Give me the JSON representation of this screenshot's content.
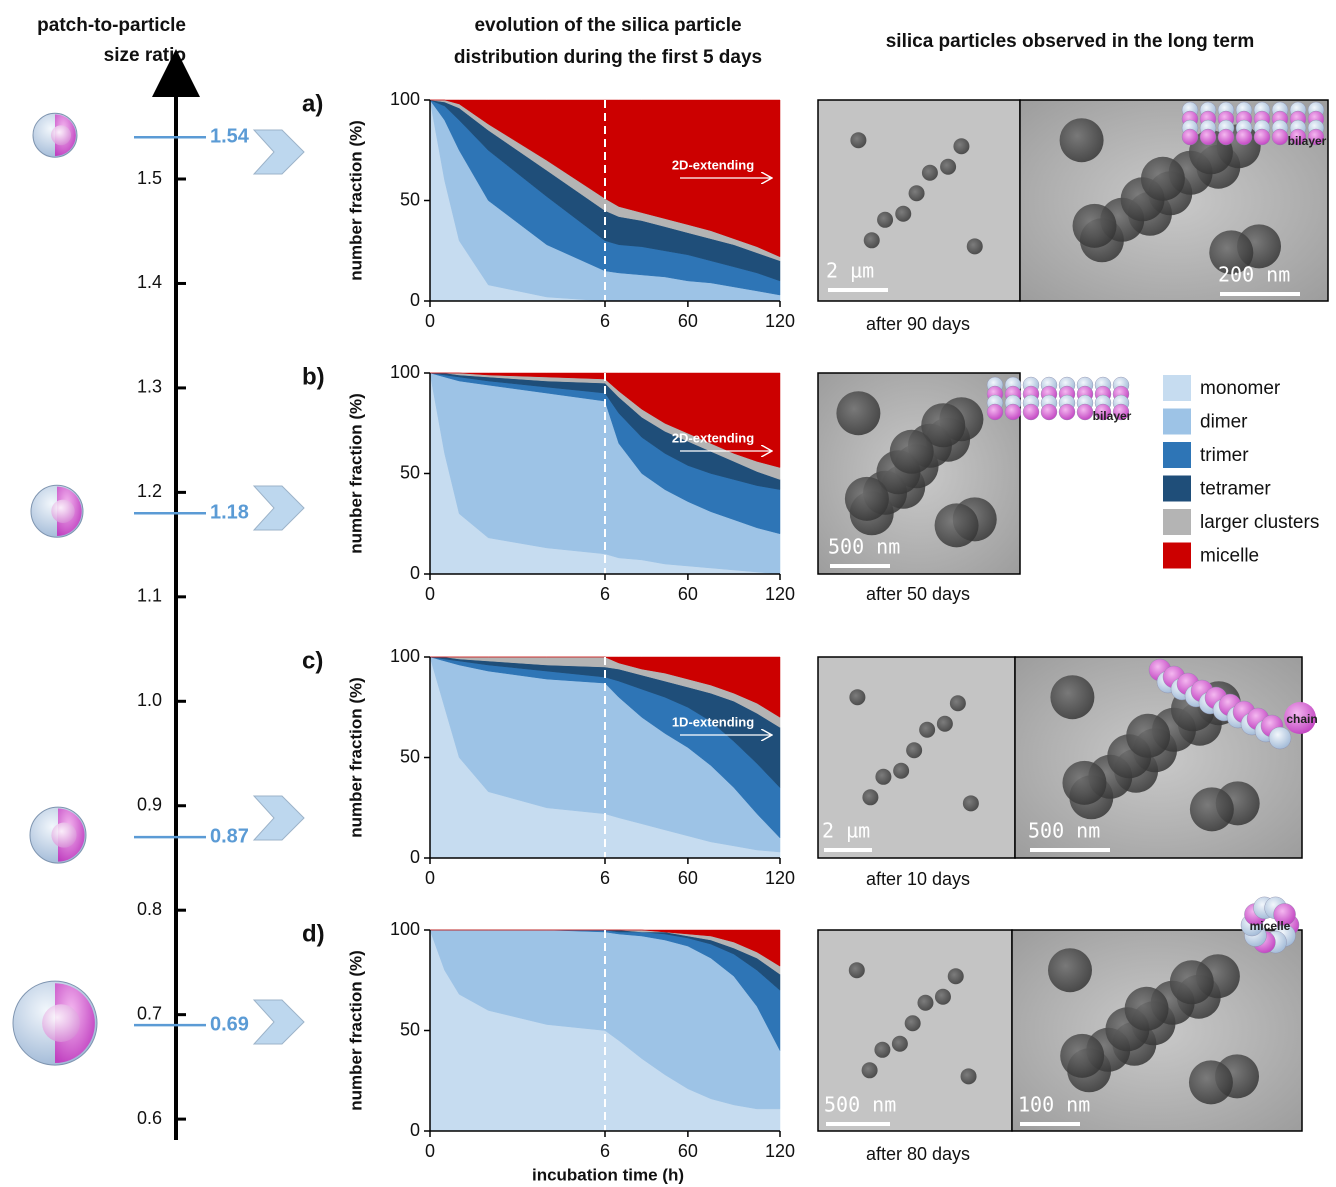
{
  "headers": {
    "axis_title": [
      "patch-to-particle",
      "size ratio"
    ],
    "evolution": [
      "evolution of the silica particle",
      "distribution during the first 5 days"
    ],
    "long_term": "silica particles observed in the long term"
  },
  "legend": [
    {
      "name": "monomer",
      "color": "#c6dcf0"
    },
    {
      "name": "dimer",
      "color": "#9dc3e6"
    },
    {
      "name": "trimer",
      "color": "#2e75b6"
    },
    {
      "name": "tetramer",
      "color": "#1f4e79"
    },
    {
      "name": "larger clusters",
      "color": "#b4b4b4"
    },
    {
      "name": "micelle",
      "color": "#cc0000"
    }
  ],
  "images": [
    {
      "caption": "after 90 days",
      "scale_bars": [
        "2 µm",
        "200 nm"
      ],
      "model": "bilayer"
    },
    {
      "caption": "after 50 days",
      "scale_bars": [
        "500 nm"
      ],
      "model": "bilayer"
    },
    {
      "caption": "after 10 days",
      "scale_bars": [
        "2 µm",
        "500 nm"
      ],
      "model": "chain"
    },
    {
      "caption": "after 80 days",
      "scale_bars": [
        "500 nm",
        "100 nm"
      ],
      "model": "micelle"
    }
  ],
  "chart_data": [
    {
      "type": "numberline",
      "ylim": [
        0.58,
        1.59
      ],
      "yticks": [
        0.6,
        0.7,
        0.8,
        0.9,
        {
          "value": 1,
          "label": "1.0"
        },
        1.1,
        1.2,
        1.3,
        1.4,
        1.5
      ],
      "values": [
        1.54,
        1.18,
        0.87,
        0.69
      ],
      "color": "#5b9bd5"
    },
    {
      "type": "stacked_area",
      "label": "a)",
      "ylabel": "number fraction (%)",
      "annotation": "2D-extending",
      "x": [
        0,
        0.5,
        1,
        2,
        4,
        6,
        15,
        30,
        45,
        60,
        75,
        90,
        105,
        120
      ],
      "xlim": [
        0,
        120
      ],
      "xticks": [
        0,
        6,
        60,
        120
      ],
      "dashed_line_x": 6,
      "ylim": [
        0,
        100
      ],
      "yticks": [
        0,
        50,
        100
      ],
      "series": [
        {
          "values": [
            100,
            60,
            30,
            8,
            2,
            0,
            0,
            0,
            0,
            0,
            0,
            0,
            0,
            0
          ]
        },
        {
          "values": [
            0,
            30,
            45,
            42,
            26,
            15,
            14,
            13,
            12,
            10,
            9,
            7,
            5,
            3
          ]
        },
        {
          "values": [
            0,
            7,
            15,
            25,
            24,
            15,
            14,
            14,
            13,
            13,
            11,
            10,
            9,
            7
          ]
        },
        {
          "values": [
            0,
            2,
            6,
            10,
            13,
            15,
            14,
            13,
            12,
            11,
            11,
            11,
            10,
            10
          ]
        },
        {
          "values": [
            0,
            1,
            2,
            3,
            5,
            6,
            5,
            4,
            4,
            4,
            4,
            3,
            3,
            2
          ]
        },
        {
          "values": [
            0,
            0,
            2,
            12,
            30,
            49,
            53,
            56,
            59,
            62,
            65,
            69,
            73,
            78
          ]
        }
      ]
    },
    {
      "type": "stacked_area",
      "label": "b)",
      "ylabel": "number fraction (%)",
      "annotation": "2D-extending",
      "x": [
        0,
        0.5,
        1,
        2,
        4,
        6,
        15,
        30,
        45,
        60,
        75,
        90,
        105,
        120
      ],
      "xlim": [
        0,
        120
      ],
      "xticks": [
        0,
        6,
        60,
        120
      ],
      "dashed_line_x": 6,
      "ylim": [
        0,
        100
      ],
      "yticks": [
        0,
        50,
        100
      ],
      "series": [
        {
          "values": [
            100,
            60,
            30,
            18,
            13,
            10,
            8,
            7,
            5,
            4,
            3,
            2,
            1,
            0
          ]
        },
        {
          "values": [
            0,
            38,
            66,
            76,
            77,
            76,
            57,
            43,
            37,
            32,
            28,
            25,
            22,
            20
          ]
        },
        {
          "values": [
            0,
            1,
            2,
            2,
            3,
            4,
            15,
            18,
            18,
            18,
            19,
            20,
            21,
            22
          ]
        },
        {
          "values": [
            0,
            1,
            1,
            2,
            3,
            5,
            8,
            10,
            11,
            12,
            11,
            9,
            7,
            5
          ]
        },
        {
          "values": [
            0,
            0,
            1,
            1,
            2,
            2,
            3,
            4,
            4,
            4,
            4,
            4,
            5,
            6
          ]
        },
        {
          "values": [
            0,
            0,
            0,
            1,
            2,
            3,
            9,
            18,
            25,
            30,
            35,
            40,
            44,
            47
          ]
        }
      ]
    },
    {
      "type": "stacked_area",
      "label": "c)",
      "ylabel": "number fraction (%)",
      "annotation": "1D-extending",
      "x": [
        0,
        0.5,
        1,
        2,
        4,
        6,
        15,
        30,
        45,
        60,
        75,
        90,
        105,
        120
      ],
      "xlim": [
        0,
        120
      ],
      "xticks": [
        0,
        6,
        60,
        120
      ],
      "dashed_line_x": 6,
      "ylim": [
        0,
        100
      ],
      "yticks": [
        0,
        50,
        100
      ],
      "series": [
        {
          "values": [
            100,
            75,
            50,
            33,
            25,
            22,
            20,
            17,
            14,
            11,
            8,
            6,
            4,
            3
          ]
        },
        {
          "values": [
            0,
            23,
            46,
            60,
            64,
            65,
            60,
            53,
            48,
            44,
            38,
            29,
            18,
            7
          ]
        },
        {
          "values": [
            0,
            1,
            2,
            3,
            4,
            3,
            8,
            14,
            18,
            20,
            22,
            23,
            25,
            25
          ]
        },
        {
          "values": [
            0,
            1,
            1,
            2,
            3,
            5,
            6,
            7,
            8,
            10,
            14,
            20,
            25,
            30
          ]
        },
        {
          "values": [
            0,
            0,
            1,
            2,
            4,
            5,
            3,
            3,
            4,
            4,
            4,
            4,
            5,
            5
          ]
        },
        {
          "values": [
            0,
            0,
            0,
            0,
            0,
            0,
            3,
            6,
            8,
            11,
            14,
            18,
            23,
            30
          ]
        }
      ]
    },
    {
      "type": "stacked_area",
      "label": "d)",
      "ylabel": "number fraction (%)",
      "xlabel": "incubation time (h)",
      "x": [
        0,
        0.5,
        1,
        2,
        4,
        6,
        15,
        30,
        45,
        60,
        75,
        90,
        105,
        120
      ],
      "xlim": [
        0,
        120
      ],
      "xticks": [
        0,
        6,
        60,
        120
      ],
      "dashed_line_x": 6,
      "ylim": [
        0,
        100
      ],
      "yticks": [
        0,
        50,
        100
      ],
      "series": [
        {
          "values": [
            100,
            80,
            68,
            60,
            53,
            50,
            45,
            36,
            28,
            21,
            16,
            13,
            11,
            11
          ]
        },
        {
          "values": [
            0,
            20,
            32,
            40,
            47,
            49,
            53,
            61,
            67,
            71,
            70,
            64,
            51,
            29
          ]
        },
        {
          "values": [
            0,
            0,
            0,
            0,
            0,
            1,
            1,
            2,
            3,
            4,
            7,
            11,
            18,
            30
          ]
        },
        {
          "values": [
            0,
            0,
            0,
            0,
            0,
            0,
            1,
            0,
            1,
            1,
            2,
            3,
            6,
            8
          ]
        },
        {
          "values": [
            0,
            0,
            0,
            0,
            0,
            0,
            0,
            1,
            0,
            1,
            2,
            3,
            3,
            4
          ]
        },
        {
          "values": [
            0,
            0,
            0,
            0,
            0,
            0,
            0,
            0,
            1,
            2,
            3,
            6,
            11,
            18
          ]
        }
      ]
    }
  ]
}
